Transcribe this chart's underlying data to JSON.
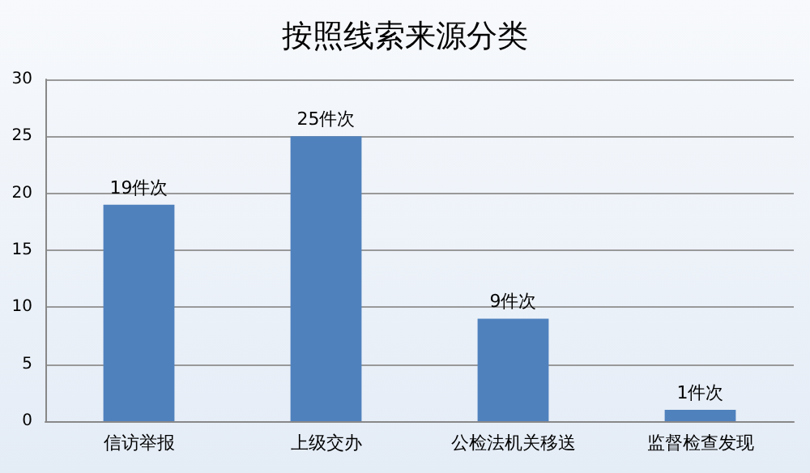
{
  "chart_data": {
    "type": "bar",
    "title": "按照线索来源分类",
    "categories": [
      "信访举报",
      "上级交办",
      "公检法机关移送",
      "监督检查发现"
    ],
    "values": [
      19,
      25,
      9,
      1
    ],
    "color": "#4f81bd",
    "value_labels": [
      "19件次",
      "25件次",
      "9件次",
      "1件次"
    ],
    "ylim": [
      0,
      30
    ],
    "yticks": [
      0,
      5,
      10,
      15,
      20,
      25,
      30
    ],
    "grid": "y"
  }
}
